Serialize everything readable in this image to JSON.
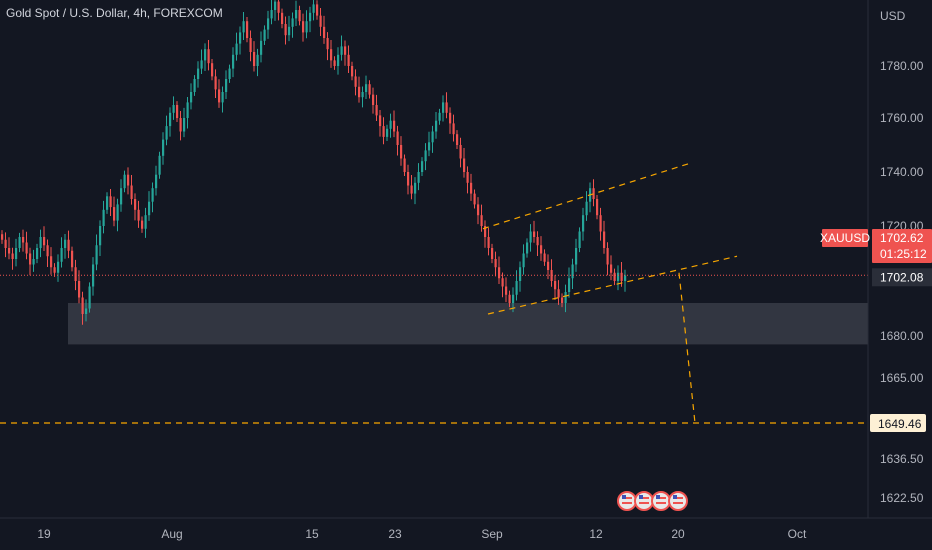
{
  "header": {
    "title": "Gold Spot / U.S. Dollar, 4h, FOREXCOM"
  },
  "colors": {
    "up": "#26a69a",
    "down": "#ef5350",
    "bg": "#131722",
    "accent": "#f7a600",
    "zone": "#363a45"
  },
  "chart_data": {
    "type": "candlestick",
    "title": "Gold Spot / U.S. Dollar, 4h, FOREXCOM",
    "currency": "USD",
    "symbol": "XAUUSD",
    "last_price": "1702.62",
    "countdown": "01:25:12",
    "crosshair_price": "1702.08",
    "target_price": "1649.46",
    "y_ticks": [
      "1780.00",
      "1760.00",
      "1740.00",
      "1720.00",
      "1680.00",
      "1665.00",
      "1636.50",
      "1622.50"
    ],
    "x_ticks": [
      "19",
      "Aug",
      "15",
      "23",
      "Sep",
      "12",
      "20",
      "Oct"
    ],
    "support_zone": [
      1677,
      1692
    ],
    "channel_upper": [
      [
        1719,
        1743
      ]
    ],
    "channel_lower": [
      [
        1688,
        1709
      ]
    ],
    "projection": [
      1703,
      1649.46
    ],
    "event_icons": 4,
    "closes": [
      1715,
      1712,
      1710,
      1708,
      1712,
      1716,
      1714,
      1710,
      1706,
      1708,
      1712,
      1716,
      1713,
      1709,
      1705,
      1703,
      1707,
      1712,
      1715,
      1711,
      1705,
      1700,
      1694,
      1688,
      1690,
      1698,
      1706,
      1713,
      1720,
      1726,
      1731,
      1727,
      1722,
      1728,
      1734,
      1739,
      1735,
      1730,
      1726,
      1722,
      1719,
      1724,
      1729,
      1734,
      1739,
      1746,
      1752,
      1757,
      1762,
      1765,
      1760,
      1755,
      1760,
      1766,
      1770,
      1775,
      1779,
      1782,
      1786,
      1781,
      1776,
      1771,
      1766,
      1770,
      1775,
      1779,
      1784,
      1788,
      1792,
      1796,
      1790,
      1785,
      1780,
      1784,
      1789,
      1793,
      1797,
      1800,
      1803,
      1799,
      1795,
      1791,
      1794,
      1797,
      1800,
      1796,
      1792,
      1796,
      1799,
      1802,
      1798,
      1794,
      1790,
      1786,
      1782,
      1780,
      1784,
      1787,
      1784,
      1780,
      1776,
      1772,
      1768,
      1770,
      1773,
      1769,
      1765,
      1761,
      1757,
      1753,
      1756,
      1759,
      1755,
      1750,
      1745,
      1740,
      1735,
      1732,
      1736,
      1740,
      1744,
      1748,
      1751,
      1755,
      1759,
      1762,
      1766,
      1762,
      1758,
      1754,
      1750,
      1745,
      1740,
      1736,
      1732,
      1728,
      1724,
      1720,
      1716,
      1712,
      1708,
      1705,
      1701,
      1698,
      1695,
      1692,
      1695,
      1700,
      1705,
      1710,
      1714,
      1718,
      1716,
      1713,
      1710,
      1707,
      1704,
      1700,
      1697,
      1694,
      1692,
      1696,
      1701,
      1706,
      1712,
      1718,
      1724,
      1729,
      1734,
      1730,
      1724,
      1718,
      1712,
      1706,
      1703,
      1700,
      1703,
      1700,
      1702
    ]
  }
}
